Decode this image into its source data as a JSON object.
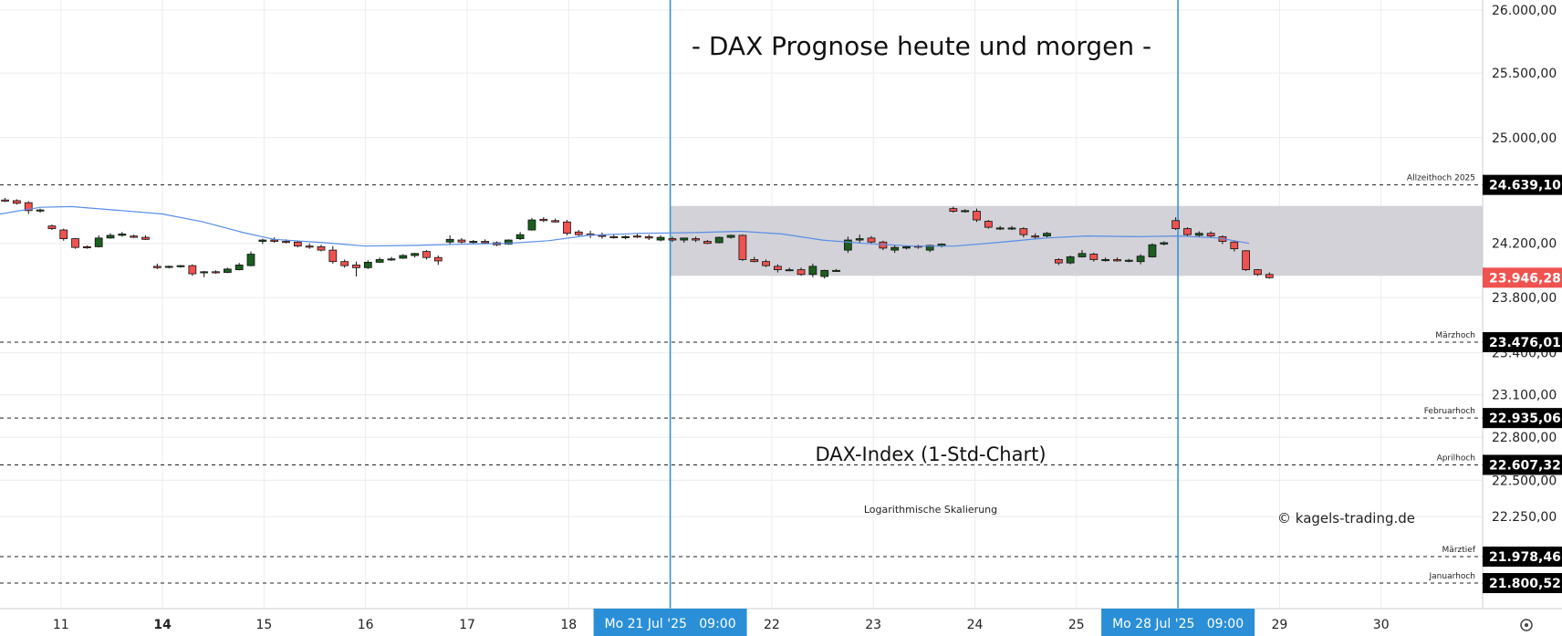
{
  "chart_data": {
    "type": "candlestick",
    "title": "- DAX Prognose heute und morgen -",
    "subtitle": "DAX-Index (1-Std-Chart)",
    "scale_note": "Logarithmische Skalierung",
    "watermark": "© kagels-trading.de",
    "log_scale": true,
    "ylim": [
      21630,
      26080
    ],
    "grid": true,
    "y_ticks": [
      "26.000,00",
      "25.500,00",
      "25.000,00",
      "24.200,00",
      "23.800,00",
      "23.400,00",
      "23.100,00",
      "22.800,00",
      "22.500,00",
      "22.250,00"
    ],
    "y_tick_values": [
      26000,
      25500,
      25000,
      24200,
      23800,
      23400,
      23100,
      22800,
      22500,
      22250
    ],
    "x_ticks": [
      {
        "label": "11",
        "pos": 0.6,
        "bold": false
      },
      {
        "label": "14",
        "pos": 1.6,
        "bold": true
      },
      {
        "label": "15",
        "pos": 2.6,
        "bold": false
      },
      {
        "label": "16",
        "pos": 3.6,
        "bold": false
      },
      {
        "label": "17",
        "pos": 4.6,
        "bold": false
      },
      {
        "label": "18",
        "pos": 5.6,
        "bold": false
      },
      {
        "label": "22",
        "pos": 7.6,
        "bold": false
      },
      {
        "label": "23",
        "pos": 8.6,
        "bold": false
      },
      {
        "label": "24",
        "pos": 9.6,
        "bold": false
      },
      {
        "label": "25",
        "pos": 10.6,
        "bold": false
      },
      {
        "label": "29",
        "pos": 12.6,
        "bold": false
      },
      {
        "label": "30",
        "pos": 13.6,
        "bold": false
      }
    ],
    "x_range": [
      0,
      14.6
    ],
    "date_markers": [
      {
        "label": "Mo 21 Jul '25   09:00",
        "pos": 6.6
      },
      {
        "label": "Mo 28 Jul '25   09:00",
        "pos": 11.6
      }
    ],
    "range_box": {
      "low": 23960,
      "high": 24480,
      "x_start": 6.6
    },
    "levels": [
      {
        "name": "Allzeithoch 2025",
        "value": 24639.1,
        "label": "24.639,10"
      },
      {
        "name": "Märzhoch",
        "value": 23476.01,
        "label": "23.476,01"
      },
      {
        "name": "Februarhoch",
        "value": 22935.06,
        "label": "22.935,06"
      },
      {
        "name": "Aprilhoch",
        "value": 22607.32,
        "label": "22.607,32"
      },
      {
        "name": "Märztief",
        "value": 21978.46,
        "label": "21.978,46"
      },
      {
        "name": "Januarhoch",
        "value": 21800.52,
        "label": "21.800,52"
      }
    ],
    "last_price": {
      "value": 23946.28,
      "label": "23.946,28"
    },
    "candles": [
      {
        "o": 24525,
        "h": 24540,
        "l": 24510,
        "c": 24520
      },
      {
        "o": 24520,
        "h": 24530,
        "l": 24490,
        "c": 24500
      },
      {
        "o": 24505,
        "h": 24515,
        "l": 24420,
        "c": 24445
      },
      {
        "o": 24445,
        "h": 24460,
        "l": 24430,
        "c": 24450
      },
      {
        "o": 24330,
        "h": 24340,
        "l": 24300,
        "c": 24310
      },
      {
        "o": 24300,
        "h": 24310,
        "l": 24220,
        "c": 24235
      },
      {
        "o": 24235,
        "h": 24240,
        "l": 24160,
        "c": 24170
      },
      {
        "o": 24175,
        "h": 24185,
        "l": 24160,
        "c": 24170
      },
      {
        "o": 24175,
        "h": 24260,
        "l": 24170,
        "c": 24240
      },
      {
        "o": 24240,
        "h": 24275,
        "l": 24235,
        "c": 24260
      },
      {
        "o": 24260,
        "h": 24285,
        "l": 24250,
        "c": 24270
      },
      {
        "o": 24255,
        "h": 24265,
        "l": 24240,
        "c": 24245
      },
      {
        "o": 24245,
        "h": 24260,
        "l": 24225,
        "c": 24230
      },
      {
        "o": 24030,
        "h": 24050,
        "l": 24010,
        "c": 24020
      },
      {
        "o": 24025,
        "h": 24035,
        "l": 24015,
        "c": 24030
      },
      {
        "o": 24030,
        "h": 24040,
        "l": 24020,
        "c": 24035
      },
      {
        "o": 24035,
        "h": 24045,
        "l": 23960,
        "c": 23975
      },
      {
        "o": 23985,
        "h": 23995,
        "l": 23950,
        "c": 23990
      },
      {
        "o": 23990,
        "h": 24000,
        "l": 23975,
        "c": 23985
      },
      {
        "o": 23985,
        "h": 24020,
        "l": 23980,
        "c": 24010
      },
      {
        "o": 24005,
        "h": 24055,
        "l": 24000,
        "c": 24040
      },
      {
        "o": 24035,
        "h": 24140,
        "l": 24030,
        "c": 24120
      },
      {
        "o": 24215,
        "h": 24235,
        "l": 24195,
        "c": 24225
      },
      {
        "o": 24225,
        "h": 24245,
        "l": 24205,
        "c": 24215
      },
      {
        "o": 24215,
        "h": 24230,
        "l": 24200,
        "c": 24210
      },
      {
        "o": 24210,
        "h": 24220,
        "l": 24170,
        "c": 24180
      },
      {
        "o": 24180,
        "h": 24200,
        "l": 24160,
        "c": 24175
      },
      {
        "o": 24175,
        "h": 24190,
        "l": 24140,
        "c": 24150
      },
      {
        "o": 24150,
        "h": 24180,
        "l": 24050,
        "c": 24065
      },
      {
        "o": 24065,
        "h": 24080,
        "l": 24020,
        "c": 24035
      },
      {
        "o": 24040,
        "h": 24065,
        "l": 23955,
        "c": 24020
      },
      {
        "o": 24020,
        "h": 24075,
        "l": 24010,
        "c": 24060
      },
      {
        "o": 24060,
        "h": 24095,
        "l": 24055,
        "c": 24080
      },
      {
        "o": 24080,
        "h": 24100,
        "l": 24070,
        "c": 24085
      },
      {
        "o": 24090,
        "h": 24120,
        "l": 24085,
        "c": 24110
      },
      {
        "o": 24110,
        "h": 24130,
        "l": 24095,
        "c": 24125
      },
      {
        "o": 24140,
        "h": 24150,
        "l": 24080,
        "c": 24095
      },
      {
        "o": 24095,
        "h": 24110,
        "l": 24040,
        "c": 24070
      },
      {
        "o": 24210,
        "h": 24260,
        "l": 24190,
        "c": 24230
      },
      {
        "o": 24225,
        "h": 24240,
        "l": 24200,
        "c": 24210
      },
      {
        "o": 24210,
        "h": 24225,
        "l": 24200,
        "c": 24215
      },
      {
        "o": 24215,
        "h": 24230,
        "l": 24200,
        "c": 24205
      },
      {
        "o": 24205,
        "h": 24215,
        "l": 24180,
        "c": 24190
      },
      {
        "o": 24195,
        "h": 24230,
        "l": 24190,
        "c": 24225
      },
      {
        "o": 24235,
        "h": 24285,
        "l": 24225,
        "c": 24265
      },
      {
        "o": 24300,
        "h": 24390,
        "l": 24295,
        "c": 24375
      },
      {
        "o": 24380,
        "h": 24395,
        "l": 24360,
        "c": 24370
      },
      {
        "o": 24370,
        "h": 24385,
        "l": 24355,
        "c": 24360
      },
      {
        "o": 24360,
        "h": 24375,
        "l": 24260,
        "c": 24275
      },
      {
        "o": 24285,
        "h": 24300,
        "l": 24255,
        "c": 24265
      },
      {
        "o": 24270,
        "h": 24295,
        "l": 24240,
        "c": 24260
      },
      {
        "o": 24260,
        "h": 24280,
        "l": 24235,
        "c": 24255
      },
      {
        "o": 24250,
        "h": 24265,
        "l": 24235,
        "c": 24245
      },
      {
        "o": 24245,
        "h": 24260,
        "l": 24230,
        "c": 24250
      },
      {
        "o": 24255,
        "h": 24270,
        "l": 24240,
        "c": 24250
      },
      {
        "o": 24250,
        "h": 24265,
        "l": 24225,
        "c": 24240
      },
      {
        "o": 24225,
        "h": 24260,
        "l": 24215,
        "c": 24245
      },
      {
        "o": 24235,
        "h": 24250,
        "l": 24210,
        "c": 24225
      },
      {
        "o": 24225,
        "h": 24240,
        "l": 24205,
        "c": 24240
      },
      {
        "o": 24235,
        "h": 24250,
        "l": 24210,
        "c": 24225
      },
      {
        "o": 24215,
        "h": 24225,
        "l": 24195,
        "c": 24200
      },
      {
        "o": 24205,
        "h": 24250,
        "l": 24200,
        "c": 24245
      },
      {
        "o": 24245,
        "h": 24265,
        "l": 24235,
        "c": 24260
      },
      {
        "o": 24260,
        "h": 24265,
        "l": 24070,
        "c": 24080
      },
      {
        "o": 24080,
        "h": 24100,
        "l": 24060,
        "c": 24065
      },
      {
        "o": 24065,
        "h": 24080,
        "l": 24025,
        "c": 24035
      },
      {
        "o": 24030,
        "h": 24045,
        "l": 23985,
        "c": 24005
      },
      {
        "o": 24005,
        "h": 24020,
        "l": 23995,
        "c": 24005
      },
      {
        "o": 24005,
        "h": 24020,
        "l": 23960,
        "c": 23970
      },
      {
        "o": 23970,
        "h": 24050,
        "l": 23950,
        "c": 24030
      },
      {
        "o": 23955,
        "h": 24005,
        "l": 23940,
        "c": 24000
      },
      {
        "o": 24000,
        "h": 24010,
        "l": 23995,
        "c": 24000
      },
      {
        "o": 24150,
        "h": 24250,
        "l": 24130,
        "c": 24225
      },
      {
        "o": 24225,
        "h": 24265,
        "l": 24205,
        "c": 24235
      },
      {
        "o": 24240,
        "h": 24255,
        "l": 24200,
        "c": 24210
      },
      {
        "o": 24210,
        "h": 24220,
        "l": 24150,
        "c": 24165
      },
      {
        "o": 24150,
        "h": 24190,
        "l": 24130,
        "c": 24170
      },
      {
        "o": 24165,
        "h": 24180,
        "l": 24155,
        "c": 24175
      },
      {
        "o": 24180,
        "h": 24190,
        "l": 24160,
        "c": 24175
      },
      {
        "o": 24150,
        "h": 24190,
        "l": 24135,
        "c": 24185
      },
      {
        "o": 24180,
        "h": 24200,
        "l": 24170,
        "c": 24195
      },
      {
        "o": 24460,
        "h": 24475,
        "l": 24430,
        "c": 24440
      },
      {
        "o": 24440,
        "h": 24455,
        "l": 24430,
        "c": 24445
      },
      {
        "o": 24440,
        "h": 24460,
        "l": 24360,
        "c": 24375
      },
      {
        "o": 24365,
        "h": 24375,
        "l": 24310,
        "c": 24320
      },
      {
        "o": 24315,
        "h": 24330,
        "l": 24300,
        "c": 24315
      },
      {
        "o": 24310,
        "h": 24330,
        "l": 24300,
        "c": 24315
      },
      {
        "o": 24310,
        "h": 24320,
        "l": 24245,
        "c": 24265
      },
      {
        "o": 24255,
        "h": 24275,
        "l": 24235,
        "c": 24250
      },
      {
        "o": 24255,
        "h": 24285,
        "l": 24245,
        "c": 24275
      },
      {
        "o": 24080,
        "h": 24090,
        "l": 24040,
        "c": 24055
      },
      {
        "o": 24055,
        "h": 24110,
        "l": 24045,
        "c": 24100
      },
      {
        "o": 24100,
        "h": 24150,
        "l": 24095,
        "c": 24125
      },
      {
        "o": 24120,
        "h": 24130,
        "l": 24065,
        "c": 24080
      },
      {
        "o": 24080,
        "h": 24095,
        "l": 24065,
        "c": 24080
      },
      {
        "o": 24080,
        "h": 24095,
        "l": 24065,
        "c": 24070
      },
      {
        "o": 24070,
        "h": 24085,
        "l": 24060,
        "c": 24075
      },
      {
        "o": 24065,
        "h": 24120,
        "l": 24045,
        "c": 24105
      },
      {
        "o": 24100,
        "h": 24200,
        "l": 24095,
        "c": 24190
      },
      {
        "o": 24195,
        "h": 24215,
        "l": 24185,
        "c": 24205
      },
      {
        "o": 24370,
        "h": 24395,
        "l": 24300,
        "c": 24310
      },
      {
        "o": 24310,
        "h": 24320,
        "l": 24250,
        "c": 24265
      },
      {
        "o": 24260,
        "h": 24290,
        "l": 24245,
        "c": 24275
      },
      {
        "o": 24275,
        "h": 24290,
        "l": 24245,
        "c": 24255
      },
      {
        "o": 24250,
        "h": 24260,
        "l": 24195,
        "c": 24215
      },
      {
        "o": 24210,
        "h": 24215,
        "l": 24140,
        "c": 24160
      },
      {
        "o": 24145,
        "h": 24150,
        "l": 23995,
        "c": 24005
      },
      {
        "o": 24005,
        "h": 24010,
        "l": 23960,
        "c": 23970
      },
      {
        "o": 23970,
        "h": 23985,
        "l": 23940,
        "c": 23946
      }
    ],
    "ma_line": [
      [
        0,
        24420
      ],
      [
        0.4,
        24470
      ],
      [
        0.7,
        24475
      ],
      [
        1.2,
        24445
      ],
      [
        1.6,
        24420
      ],
      [
        2.0,
        24360
      ],
      [
        2.4,
        24280
      ],
      [
        2.7,
        24230
      ],
      [
        3.2,
        24205
      ],
      [
        3.6,
        24180
      ],
      [
        4.1,
        24185
      ],
      [
        4.6,
        24195
      ],
      [
        5.0,
        24200
      ],
      [
        5.4,
        24220
      ],
      [
        5.8,
        24260
      ],
      [
        6.3,
        24275
      ],
      [
        6.8,
        24280
      ],
      [
        7.3,
        24290
      ],
      [
        7.7,
        24270
      ],
      [
        8.1,
        24225
      ],
      [
        8.5,
        24200
      ],
      [
        9.0,
        24180
      ],
      [
        9.4,
        24180
      ],
      [
        9.8,
        24205
      ],
      [
        10.3,
        24240
      ],
      [
        10.7,
        24255
      ],
      [
        11.2,
        24250
      ],
      [
        11.6,
        24255
      ],
      [
        12.0,
        24240
      ],
      [
        12.3,
        24200
      ]
    ]
  },
  "ui": {
    "settings_icon": "gear-icon",
    "colors": {
      "up": "#1b5e20",
      "down": "#ef5350",
      "ma": "#5a8de6",
      "marker": "#2a8fd6",
      "range_box": "#d0d0d6",
      "level_tag": "#000000",
      "last_price_tag": "#ef5350"
    }
  }
}
